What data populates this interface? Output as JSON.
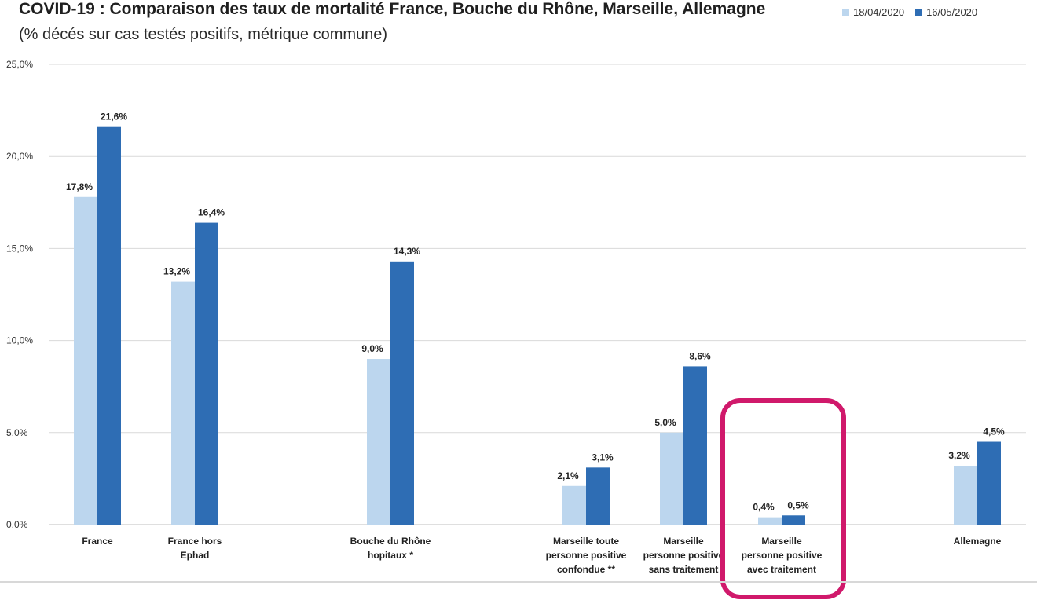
{
  "header": {
    "title": "COVID-19 : Comparaison des taux de mortalité France, Bouche du Rhône, Marseille, Allemagne",
    "subtitle": "(% décés sur cas testés positifs, métrique commune)"
  },
  "legend": {
    "items": [
      {
        "label": "18/04/2020",
        "color": "#bcd6ee"
      },
      {
        "label": "16/05/2020",
        "color": "#2e6db4"
      }
    ]
  },
  "chart_data": {
    "type": "bar",
    "title": "COVID-19 : Comparaison des taux de mortalité France, Bouche du Rhône, Marseille, Allemagne",
    "subtitle": "(% décés sur cas testés positifs, métrique commune)",
    "categories": [
      [
        "France"
      ],
      [
        "France hors",
        "Ephad"
      ],
      [
        "Bouche du Rhône",
        "hopitaux *"
      ],
      [
        "Marseille toute",
        "personne positive",
        "confondue **"
      ],
      [
        "Marseille",
        "personne positive",
        "sans traitement"
      ],
      [
        "Marseille",
        "personne positive",
        "avec traitement"
      ],
      [
        "Allemagne"
      ]
    ],
    "series": [
      {
        "name": "18/04/2020",
        "color": "#bcd6ee",
        "values": [
          17.8,
          13.2,
          9.0,
          2.1,
          5.0,
          0.4,
          3.2
        ],
        "labels": [
          "17,8%",
          "13,2%",
          "9,0%",
          "2,1%",
          "5,0%",
          "0,4%",
          "3,2%"
        ]
      },
      {
        "name": "16/05/2020",
        "color": "#2e6db4",
        "values": [
          21.6,
          16.4,
          14.3,
          3.1,
          8.6,
          0.5,
          4.5
        ],
        "labels": [
          "21,6%",
          "16,4%",
          "14,3%",
          "3,1%",
          "8,6%",
          "0,5%",
          "4,5%"
        ]
      }
    ],
    "ylim": [
      0,
      25
    ],
    "yticks": [
      "0,0%",
      "5,0%",
      "10,0%",
      "15,0%",
      "20,0%",
      "25,0%"
    ],
    "grid": true,
    "legend_position": "top-right",
    "highlighted_category": 5,
    "highlight_color": "#d0196b"
  }
}
